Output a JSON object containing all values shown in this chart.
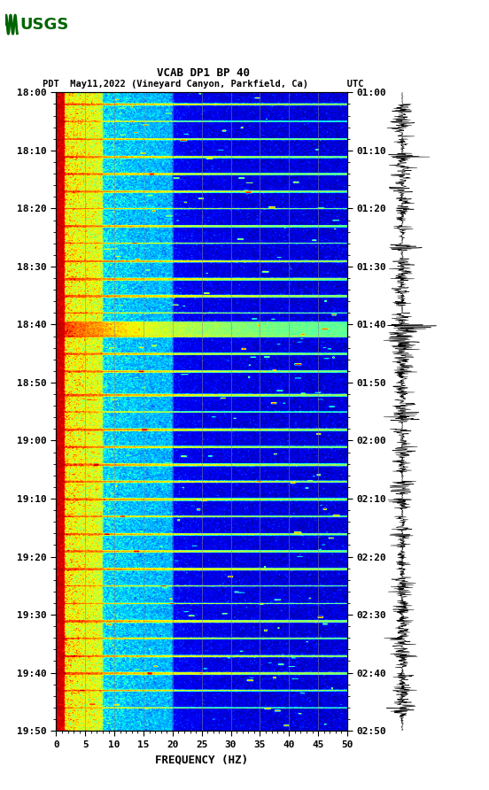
{
  "title_line1": "VCAB DP1 BP 40",
  "title_line2": "PDT  May11,2022 (Vineyard Canyon, Parkfield, Ca)       UTC",
  "xlabel": "FREQUENCY (HZ)",
  "freq_min": 0,
  "freq_max": 50,
  "ytick_pdt": [
    "18:00",
    "18:10",
    "18:20",
    "18:30",
    "18:40",
    "18:50",
    "19:00",
    "19:10",
    "19:20",
    "19:30",
    "19:40",
    "19:50"
  ],
  "ytick_utc": [
    "01:00",
    "01:10",
    "01:20",
    "01:30",
    "01:40",
    "01:50",
    "02:00",
    "02:10",
    "02:20",
    "02:30",
    "02:40",
    "02:50"
  ],
  "xticks": [
    0,
    5,
    10,
    15,
    20,
    25,
    30,
    35,
    40,
    45,
    50
  ],
  "vertical_line_freqs": [
    5,
    10,
    15,
    20,
    25,
    30,
    35,
    40,
    45
  ],
  "vline_color": "#888888",
  "colormap": "jet",
  "fig_width": 5.52,
  "fig_height": 8.92,
  "dpi": 100,
  "n_time": 1200,
  "n_freq": 600,
  "total_minutes": 110
}
